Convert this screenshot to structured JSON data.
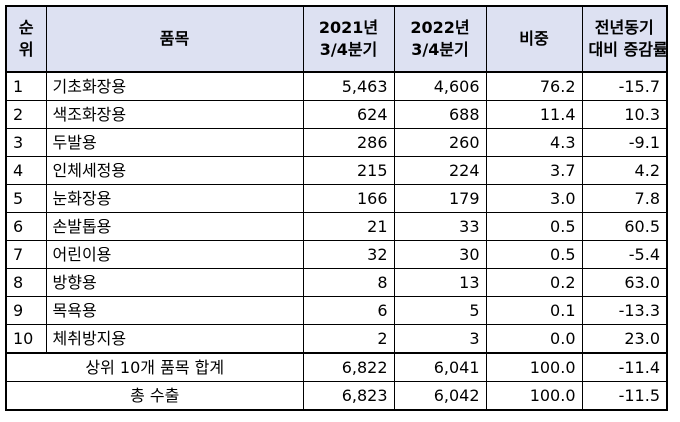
{
  "table": {
    "headers": {
      "rank": [
        "순",
        "위"
      ],
      "item": "품목",
      "y2021": [
        "2021년",
        "3/4분기"
      ],
      "y2022": [
        "2022년",
        "3/4분기"
      ],
      "share": "비중",
      "change": [
        "전년동기",
        "대비 증감률"
      ]
    },
    "rows": [
      {
        "rank": "1",
        "item": "기초화장용",
        "y2021": "5,463",
        "y2022": "4,606",
        "share": "76.2",
        "change": "-15.7"
      },
      {
        "rank": "2",
        "item": "색조화장용",
        "y2021": "624",
        "y2022": "688",
        "share": "11.4",
        "change": "10.3"
      },
      {
        "rank": "3",
        "item": "두발용",
        "y2021": "286",
        "y2022": "260",
        "share": "4.3",
        "change": "-9.1"
      },
      {
        "rank": "4",
        "item": "인체세정용",
        "y2021": "215",
        "y2022": "224",
        "share": "3.7",
        "change": "4.2"
      },
      {
        "rank": "5",
        "item": "눈화장용",
        "y2021": "166",
        "y2022": "179",
        "share": "3.0",
        "change": "7.8"
      },
      {
        "rank": "6",
        "item": "손발톱용",
        "y2021": "21",
        "y2022": "33",
        "share": "0.5",
        "change": "60.5"
      },
      {
        "rank": "7",
        "item": "어린이용",
        "y2021": "32",
        "y2022": "30",
        "share": "0.5",
        "change": "-5.4"
      },
      {
        "rank": "8",
        "item": "방향용",
        "y2021": "8",
        "y2022": "13",
        "share": "0.2",
        "change": "63.0"
      },
      {
        "rank": "9",
        "item": "목욕용",
        "y2021": "6",
        "y2022": "5",
        "share": "0.1",
        "change": "-13.3"
      },
      {
        "rank": "10",
        "item": "체취방지용",
        "y2021": "2",
        "y2022": "3",
        "share": "0.0",
        "change": "23.0"
      }
    ],
    "summary": [
      {
        "label": "상위 10개 품목 합계",
        "y2021": "6,822",
        "y2022": "6,041",
        "share": "100.0",
        "change": "-11.4"
      },
      {
        "label": "총 수출",
        "y2021": "6,823",
        "y2022": "6,042",
        "share": "100.0",
        "change": "-11.5"
      }
    ]
  }
}
